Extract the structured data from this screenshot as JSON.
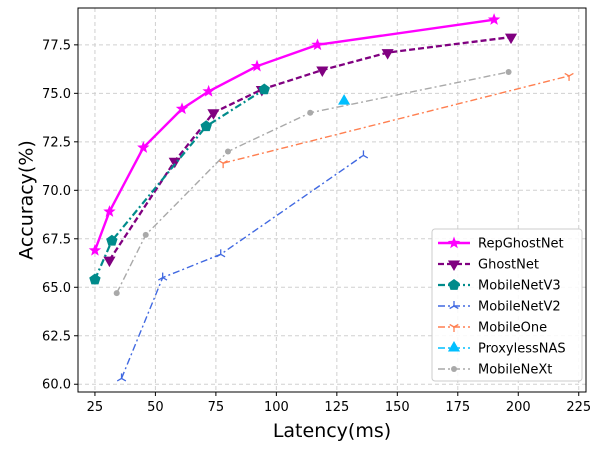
{
  "chart_data": {
    "type": "line",
    "xlabel": "Latency(ms)",
    "ylabel": "Accuracy(%)",
    "xlim": [
      18,
      228
    ],
    "ylim": [
      59.6,
      79.4
    ],
    "xticks": [
      25,
      50,
      75,
      100,
      125,
      150,
      175,
      200,
      225
    ],
    "yticks": [
      60.0,
      62.5,
      65.0,
      67.5,
      70.0,
      72.5,
      75.0,
      77.5
    ],
    "xtick_labels": [
      "25",
      "50",
      "75",
      "100",
      "125",
      "150",
      "175",
      "200",
      "225"
    ],
    "ytick_labels": [
      "60.0",
      "62.5",
      "65.0",
      "67.5",
      "70.0",
      "72.5",
      "75.0",
      "77.5"
    ],
    "grid": true,
    "legend_position": "lower-right",
    "series": [
      {
        "name": "RepGhostNet",
        "color": "#ff00ff",
        "marker": "star",
        "dash": "solid",
        "x": [
          25,
          31,
          45,
          61,
          72,
          92,
          117,
          190
        ],
        "y": [
          66.9,
          68.9,
          72.2,
          74.2,
          75.1,
          76.4,
          77.5,
          78.8
        ]
      },
      {
        "name": "GhostNet",
        "color": "#800080",
        "marker": "triangle-down",
        "dash": "dashed",
        "x": [
          31,
          58,
          74,
          94,
          119,
          146,
          197
        ],
        "y": [
          66.4,
          71.5,
          74.0,
          75.2,
          76.2,
          77.1,
          77.9
        ]
      },
      {
        "name": "MobileNetV3",
        "color": "#008b8b",
        "marker": "pentagon",
        "dash": "dashdot",
        "x": [
          25,
          32,
          71,
          95
        ],
        "y": [
          65.4,
          67.4,
          73.3,
          75.2
        ]
      },
      {
        "name": "MobileNetV2",
        "color": "#4169e1",
        "marker": "tri-up",
        "dash": "dashdot",
        "x": [
          36,
          53,
          77,
          136
        ],
        "y": [
          60.3,
          65.5,
          66.7,
          71.8
        ]
      },
      {
        "name": "MobileOne",
        "color": "#ff7f50",
        "marker": "tri-down",
        "dash": "dashdot",
        "x": [
          78,
          221
        ],
        "y": [
          71.4,
          75.9
        ]
      },
      {
        "name": "ProxylessNAS",
        "color": "#00bfff",
        "marker": "triangle-up",
        "dash": "dashdot",
        "x": [
          128
        ],
        "y": [
          74.6
        ]
      },
      {
        "name": "MobileNeXt",
        "color": "#a9a9a9",
        "marker": "circle",
        "dash": "dashdot",
        "x": [
          34,
          46,
          80,
          114,
          196
        ],
        "y": [
          64.7,
          67.7,
          72.0,
          74.0,
          76.1
        ]
      }
    ]
  }
}
